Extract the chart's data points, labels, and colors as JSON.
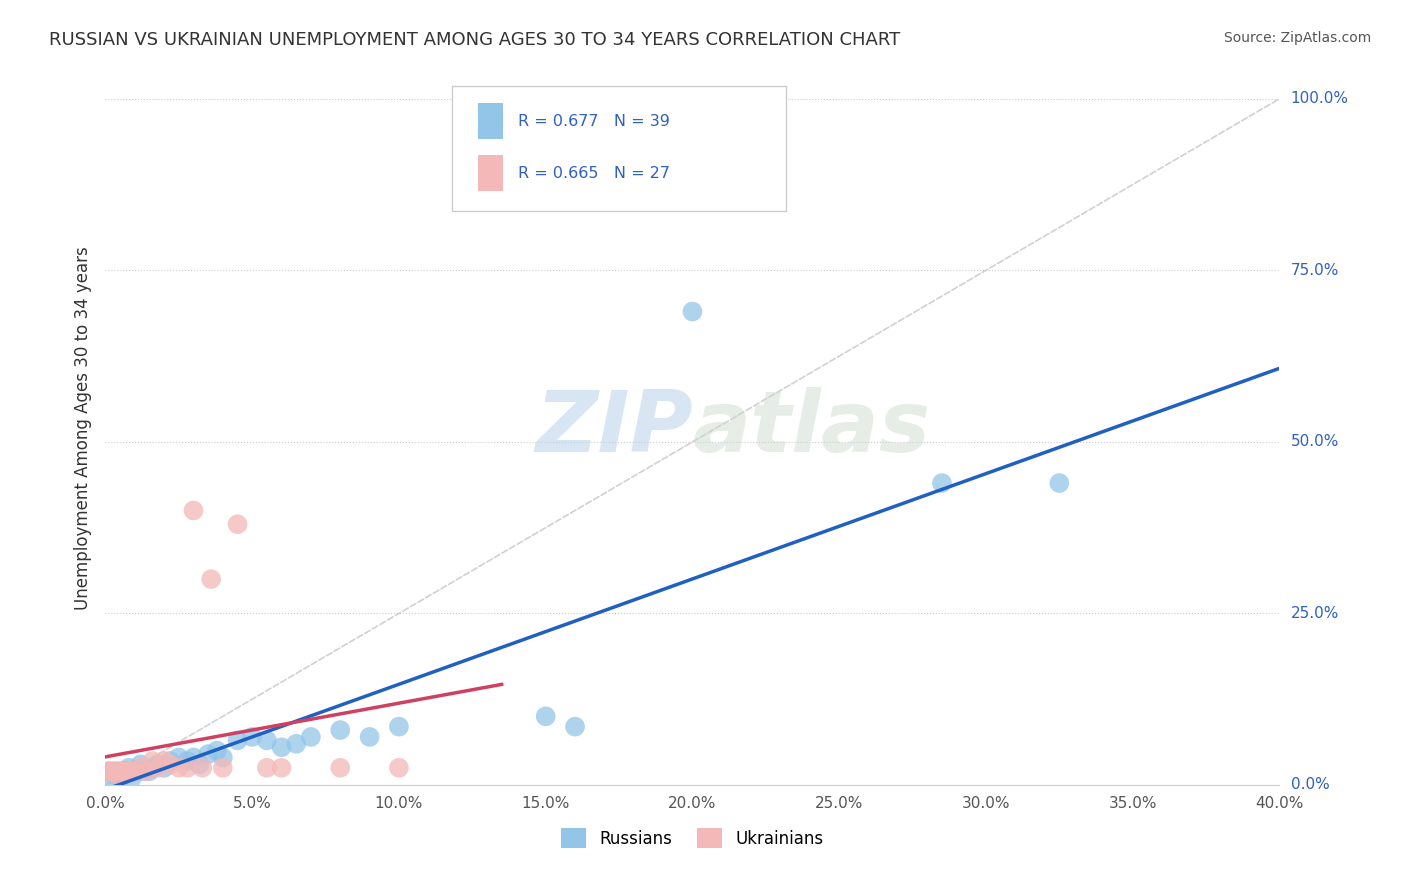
{
  "title": "RUSSIAN VS UKRAINIAN UNEMPLOYMENT AMONG AGES 30 TO 34 YEARS CORRELATION CHART",
  "source": "Source: ZipAtlas.com",
  "ylabel_label": "Unemployment Among Ages 30 to 34 years",
  "legend_russian": "R = 0.677   N = 39",
  "legend_ukrainian": "R = 0.665   N = 27",
  "legend_label_russians": "Russians",
  "legend_label_ukrainians": "Ukrainians",
  "russian_color": "#92c5e8",
  "ukrainian_color": "#f4b8b8",
  "russian_line_color": "#2060c0",
  "ukrainian_line_color": "#d04060",
  "ref_line_color": "#cccccc",
  "background_color": "#ffffff",
  "text_color": "#333333",
  "axis_color": "#555555",
  "blue_label_color": "#3060c0",
  "russian_points": [
    [
      0.001,
      0.02
    ],
    [
      0.002,
      0.01
    ],
    [
      0.003,
      0.015
    ],
    [
      0.004,
      0.02
    ],
    [
      0.005,
      0.01
    ],
    [
      0.006,
      0.02
    ],
    [
      0.007,
      0.02
    ],
    [
      0.008,
      0.025
    ],
    [
      0.009,
      0.01
    ],
    [
      0.01,
      0.02
    ],
    [
      0.011,
      0.02
    ],
    [
      0.012,
      0.03
    ],
    [
      0.013,
      0.02
    ],
    [
      0.015,
      0.02
    ],
    [
      0.016,
      0.025
    ],
    [
      0.018,
      0.03
    ],
    [
      0.02,
      0.025
    ],
    [
      0.022,
      0.035
    ],
    [
      0.025,
      0.04
    ],
    [
      0.028,
      0.035
    ],
    [
      0.03,
      0.04
    ],
    [
      0.032,
      0.03
    ],
    [
      0.035,
      0.045
    ],
    [
      0.038,
      0.05
    ],
    [
      0.04,
      0.04
    ],
    [
      0.045,
      0.065
    ],
    [
      0.05,
      0.07
    ],
    [
      0.055,
      0.065
    ],
    [
      0.06,
      0.055
    ],
    [
      0.065,
      0.06
    ],
    [
      0.07,
      0.07
    ],
    [
      0.08,
      0.08
    ],
    [
      0.09,
      0.07
    ],
    [
      0.1,
      0.085
    ],
    [
      0.15,
      0.1
    ],
    [
      0.16,
      0.085
    ],
    [
      0.2,
      0.69
    ],
    [
      0.285,
      0.44
    ],
    [
      0.325,
      0.44
    ]
  ],
  "ukrainian_points": [
    [
      0.001,
      0.02
    ],
    [
      0.002,
      0.02
    ],
    [
      0.003,
      0.02
    ],
    [
      0.004,
      0.015
    ],
    [
      0.005,
      0.02
    ],
    [
      0.006,
      0.02
    ],
    [
      0.007,
      0.02
    ],
    [
      0.008,
      0.02
    ],
    [
      0.009,
      0.02
    ],
    [
      0.01,
      0.02
    ],
    [
      0.012,
      0.025
    ],
    [
      0.014,
      0.02
    ],
    [
      0.016,
      0.035
    ],
    [
      0.018,
      0.025
    ],
    [
      0.02,
      0.035
    ],
    [
      0.022,
      0.03
    ],
    [
      0.025,
      0.025
    ],
    [
      0.028,
      0.025
    ],
    [
      0.03,
      0.4
    ],
    [
      0.033,
      0.025
    ],
    [
      0.036,
      0.3
    ],
    [
      0.04,
      0.025
    ],
    [
      0.045,
      0.38
    ],
    [
      0.055,
      0.025
    ],
    [
      0.06,
      0.025
    ],
    [
      0.08,
      0.025
    ],
    [
      0.1,
      0.025
    ]
  ],
  "xmin": 0.0,
  "xmax": 0.4,
  "ymin": 0.0,
  "ymax": 1.04,
  "ytick_vals": [
    0.0,
    0.25,
    0.5,
    0.75,
    1.0
  ],
  "ytick_labels": [
    "0.0%",
    "25.0%",
    "50.0%",
    "75.0%",
    "100.0%"
  ],
  "xtick_vals": [
    0.0,
    0.05,
    0.1,
    0.15,
    0.2,
    0.25,
    0.3,
    0.35,
    0.4
  ],
  "xtick_labels": [
    "0.0%",
    "5.0%",
    "10.0%",
    "15.0%",
    "20.0%",
    "25.0%",
    "30.0%",
    "35.0%",
    "40.0%"
  ],
  "watermark": "ZIPatlas",
  "watermark_color": "#d8e8f0",
  "ref_line_slope": 2.5
}
